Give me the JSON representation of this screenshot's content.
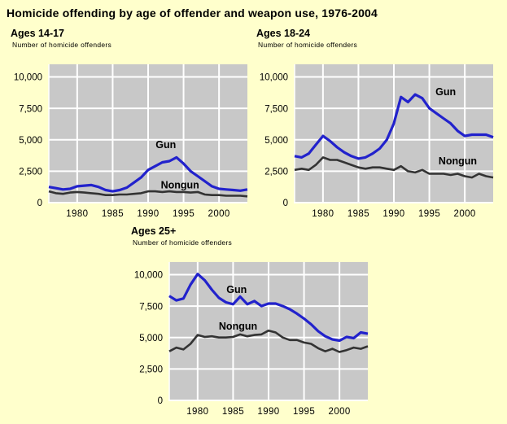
{
  "page": {
    "title": "Homicide offending by age of offender and weapon use, 1976-2004",
    "background_color": "#FFFFCC"
  },
  "colors": {
    "plot_bg": "#C8C8C8",
    "grid": "#FFFFFF",
    "gun_line": "#2222CC",
    "nongun_line": "#333333",
    "text": "#000000"
  },
  "chart_data": {
    "type": "line",
    "grid": true,
    "legend_position": "inline-labels",
    "x_years": [
      1976,
      1977,
      1978,
      1979,
      1980,
      1981,
      1982,
      1983,
      1984,
      1985,
      1986,
      1987,
      1988,
      1989,
      1990,
      1991,
      1992,
      1993,
      1994,
      1995,
      1996,
      1997,
      1998,
      1999,
      2000,
      2001,
      2002,
      2003,
      2004
    ],
    "xlim": [
      1976,
      2004
    ],
    "ylim": [
      0,
      11000
    ],
    "x_ticks": [
      1980,
      1985,
      1990,
      1995,
      2000
    ],
    "y_ticks": {
      "values": [
        0,
        2500,
        5000,
        7500,
        10000
      ],
      "labels": [
        "0",
        "2,500",
        "5,000",
        "7,500",
        "10,000"
      ]
    },
    "charts": [
      {
        "title": "Ages 14-17",
        "ylabel": "Number of homicide offenders",
        "series": [
          {
            "name": "Gun",
            "color": "#2222CC",
            "label_anchor": {
              "year": 1992.5,
              "value": 4600
            },
            "values": [
              1250,
              1150,
              1050,
              1100,
              1300,
              1350,
              1400,
              1250,
              1000,
              900,
              1000,
              1200,
              1600,
              2000,
              2600,
              2900,
              3200,
              3300,
              3600,
              3100,
              2500,
              2100,
              1700,
              1300,
              1100,
              1050,
              1000,
              950,
              1050
            ]
          },
          {
            "name": "Nongun",
            "color": "#333333",
            "label_anchor": {
              "year": 1994.5,
              "value": 1400
            },
            "values": [
              900,
              750,
              700,
              800,
              850,
              800,
              750,
              700,
              600,
              600,
              650,
              650,
              700,
              750,
              900,
              900,
              850,
              900,
              850,
              850,
              800,
              850,
              650,
              600,
              600,
              550,
              550,
              550,
              500
            ]
          }
        ]
      },
      {
        "title": "Ages 18-24",
        "ylabel": "Number of homicide offenders",
        "series": [
          {
            "name": "Gun",
            "color": "#2222CC",
            "label_anchor": {
              "year": 1997.3,
              "value": 8800
            },
            "values": [
              3700,
              3600,
              3900,
              4600,
              5300,
              4900,
              4400,
              4000,
              3700,
              3500,
              3600,
              3900,
              4300,
              5000,
              6300,
              8400,
              8000,
              8600,
              8300,
              7500,
              7100,
              6700,
              6300,
              5700,
              5300,
              5400,
              5400,
              5400,
              5200
            ]
          },
          {
            "name": "Nongun",
            "color": "#333333",
            "label_anchor": {
              "year": 1999.0,
              "value": 3300
            },
            "values": [
              2600,
              2700,
              2600,
              3000,
              3600,
              3400,
              3400,
              3200,
              3000,
              2800,
              2700,
              2800,
              2800,
              2700,
              2600,
              2900,
              2500,
              2400,
              2600,
              2300,
              2300,
              2300,
              2200,
              2300,
              2100,
              2000,
              2300,
              2100,
              2000
            ]
          }
        ]
      },
      {
        "title": "Ages 25+",
        "ylabel": "Number of homicide offenders",
        "series": [
          {
            "name": "Gun",
            "color": "#2222CC",
            "label_anchor": {
              "year": 1985.5,
              "value": 8800
            },
            "values": [
              8300,
              7950,
              8100,
              9200,
              10050,
              9550,
              8800,
              8150,
              7800,
              7650,
              8250,
              7650,
              7900,
              7500,
              7700,
              7700,
              7500,
              7250,
              6900,
              6500,
              6050,
              5500,
              5100,
              4850,
              4750,
              5050,
              4950,
              5400,
              5300
            ]
          },
          {
            "name": "Nongun",
            "color": "#333333",
            "label_anchor": {
              "year": 1985.7,
              "value": 5900
            },
            "values": [
              3900,
              4200,
              4050,
              4500,
              5200,
              5050,
              5100,
              5000,
              5000,
              5050,
              5250,
              5100,
              5200,
              5250,
              5550,
              5400,
              5000,
              4800,
              4800,
              4600,
              4500,
              4150,
              3900,
              4100,
              3850,
              4000,
              4200,
              4100,
              4300
            ]
          }
        ]
      }
    ]
  }
}
